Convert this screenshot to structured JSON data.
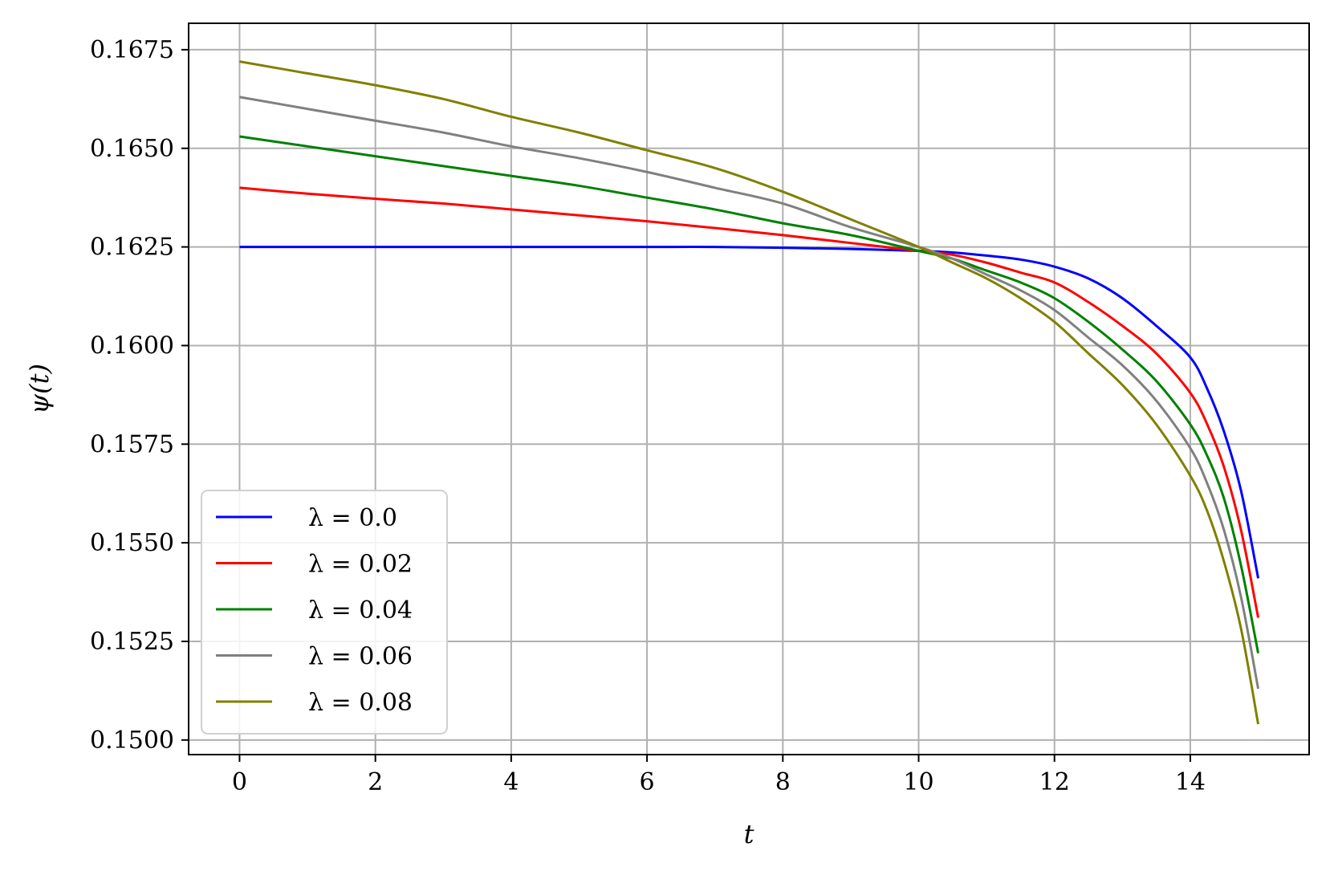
{
  "chart_data": {
    "type": "line",
    "title": "",
    "xlabel": "t",
    "ylabel": "ψ(t)",
    "xlim": [
      -0.75,
      15.75
    ],
    "ylim": [
      0.14963,
      0.16817
    ],
    "xticks": [
      0,
      2,
      4,
      6,
      8,
      10,
      12,
      14
    ],
    "xtick_labels": [
      "0",
      "2",
      "4",
      "6",
      "8",
      "10",
      "12",
      "14"
    ],
    "yticks": [
      0.15,
      0.1525,
      0.155,
      0.1575,
      0.16,
      0.1625,
      0.165,
      0.1675
    ],
    "ytick_labels": [
      "0.1500",
      "0.1525",
      "0.1550",
      "0.1575",
      "0.1600",
      "0.1625",
      "0.1650",
      "0.1675"
    ],
    "grid": true,
    "legend_position": "lower-left",
    "x": [
      0,
      1,
      2,
      3,
      4,
      5,
      6,
      7,
      8,
      9,
      10,
      10.5,
      11,
      11.5,
      12,
      12.5,
      13,
      13.5,
      14,
      14.25,
      14.5,
      14.75,
      15
    ],
    "series": [
      {
        "name": "λ = 0.0",
        "color": "#0000ff",
        "values": [
          0.1625,
          0.1625,
          0.1625,
          0.1625,
          0.1625,
          0.1625,
          0.1625,
          0.1625,
          0.16248,
          0.16245,
          0.1624,
          0.16236,
          0.16228,
          0.16218,
          0.162,
          0.1617,
          0.1612,
          0.1605,
          0.1597,
          0.1589,
          0.1578,
          0.1563,
          0.1541
        ]
      },
      {
        "name": "λ = 0.02",
        "color": "#ff0000",
        "values": [
          0.164,
          0.16385,
          0.16372,
          0.1636,
          0.16345,
          0.1633,
          0.16315,
          0.16298,
          0.1628,
          0.1626,
          0.1624,
          0.1623,
          0.1621,
          0.16185,
          0.1616,
          0.1611,
          0.1605,
          0.1598,
          0.1588,
          0.158,
          0.1569,
          0.1553,
          0.1531
        ]
      },
      {
        "name": "λ = 0.04",
        "color": "#008000",
        "values": [
          0.1653,
          0.16505,
          0.1648,
          0.16455,
          0.1643,
          0.16405,
          0.16375,
          0.16345,
          0.1631,
          0.1628,
          0.1624,
          0.1622,
          0.1619,
          0.1616,
          0.1612,
          0.1606,
          0.1599,
          0.1591,
          0.158,
          0.1572,
          0.1561,
          0.1544,
          0.1522
        ]
      },
      {
        "name": "λ = 0.06",
        "color": "#808080",
        "values": [
          0.1663,
          0.166,
          0.1657,
          0.1654,
          0.16505,
          0.16475,
          0.1644,
          0.164,
          0.1636,
          0.163,
          0.1625,
          0.1622,
          0.1618,
          0.1614,
          0.1609,
          0.1602,
          0.1595,
          0.1586,
          0.1574,
          0.1565,
          0.1553,
          0.1536,
          0.1513
        ]
      },
      {
        "name": "λ = 0.08",
        "color": "#808000",
        "values": [
          0.1672,
          0.1669,
          0.1666,
          0.16625,
          0.1658,
          0.1654,
          0.16495,
          0.1645,
          0.1639,
          0.1632,
          0.1625,
          0.1621,
          0.1617,
          0.1612,
          0.1606,
          0.1598,
          0.159,
          0.158,
          0.1567,
          0.1558,
          0.1545,
          0.1528,
          0.1504
        ]
      }
    ]
  }
}
